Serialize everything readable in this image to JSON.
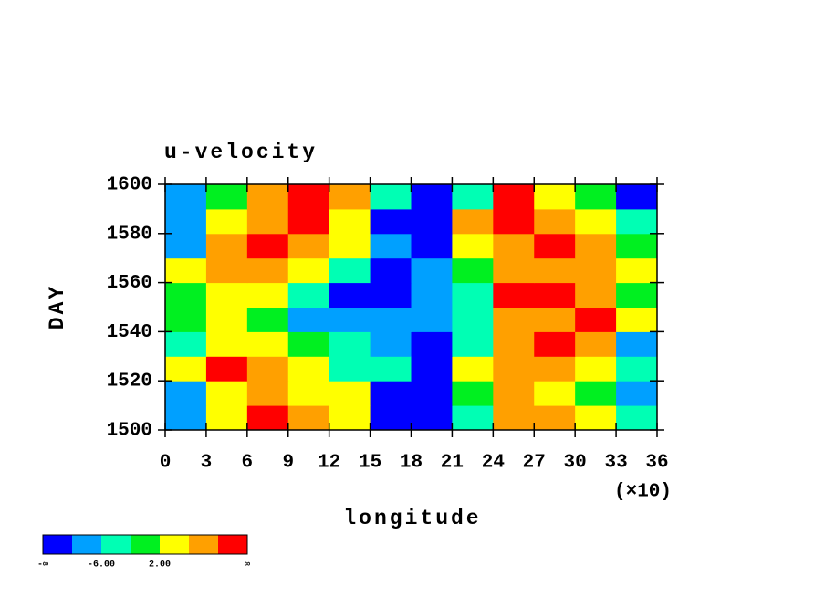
{
  "chart_data": {
    "type": "heatmap",
    "title": "u-velocity",
    "ylabel": "DAY",
    "xlabel": "longitude",
    "x_multiplier_label": "(×10)",
    "x": [
      15,
      45,
      75,
      105,
      135,
      165,
      195,
      225,
      255,
      285,
      315,
      345
    ],
    "y": [
      1505,
      1515,
      1525,
      1535,
      1545,
      1555,
      1565,
      1575,
      1585,
      1595
    ],
    "z": [
      [
        -8,
        4,
        12,
        8,
        4,
        -12,
        -12,
        -4,
        8,
        8,
        4,
        -4
      ],
      [
        -8,
        4,
        8,
        4,
        4,
        -12,
        -12,
        0,
        8,
        4,
        0,
        -8
      ],
      [
        4,
        12,
        8,
        4,
        -4,
        -4,
        -12,
        4,
        8,
        8,
        4,
        -4
      ],
      [
        -4,
        4,
        4,
        0,
        -4,
        -8,
        -12,
        -4,
        8,
        12,
        8,
        -8
      ],
      [
        0,
        4,
        0,
        -8,
        -8,
        -8,
        -8,
        -4,
        8,
        8,
        12,
        4
      ],
      [
        0,
        4,
        4,
        -4,
        -12,
        -12,
        -8,
        -4,
        12,
        12,
        8,
        0
      ],
      [
        4,
        8,
        8,
        4,
        -4,
        -12,
        -8,
        0,
        8,
        8,
        8,
        4
      ],
      [
        -8,
        8,
        12,
        8,
        4,
        -8,
        -12,
        4,
        8,
        12,
        8,
        0
      ],
      [
        -8,
        4,
        8,
        12,
        4,
        -12,
        -12,
        8,
        12,
        8,
        4,
        -4
      ],
      [
        -8,
        0,
        8,
        12,
        8,
        -4,
        -12,
        -4,
        12,
        4,
        0,
        -12
      ]
    ],
    "xlim": [
      0,
      360
    ],
    "ylim": [
      1500,
      1600
    ],
    "xticks": [
      {
        "value": 0,
        "label": "0"
      },
      {
        "value": 30,
        "label": "3"
      },
      {
        "value": 60,
        "label": "6"
      },
      {
        "value": 90,
        "label": "9"
      },
      {
        "value": 120,
        "label": "12"
      },
      {
        "value": 150,
        "label": "15"
      },
      {
        "value": 180,
        "label": "18"
      },
      {
        "value": 210,
        "label": "21"
      },
      {
        "value": 240,
        "label": "24"
      },
      {
        "value": 270,
        "label": "27"
      },
      {
        "value": 300,
        "label": "30"
      },
      {
        "value": 330,
        "label": "33"
      },
      {
        "value": 360,
        "label": "36"
      }
    ],
    "yticks": [
      1500,
      1520,
      1540,
      1560,
      1580,
      1600
    ],
    "levels": [
      -10,
      -6,
      -2,
      2,
      6,
      10
    ],
    "colors": [
      "#0000ff",
      "#00a0ff",
      "#00ffb4",
      "#00f020",
      "#ffff00",
      "#ffa000",
      "#ff0000"
    ],
    "colorbar_low_label": "-∞",
    "colorbar_high_label": "∞",
    "colorbar_labels": [
      {
        "value": -6,
        "label": "-6.00"
      },
      {
        "value": 2,
        "label": "2.00"
      }
    ]
  }
}
